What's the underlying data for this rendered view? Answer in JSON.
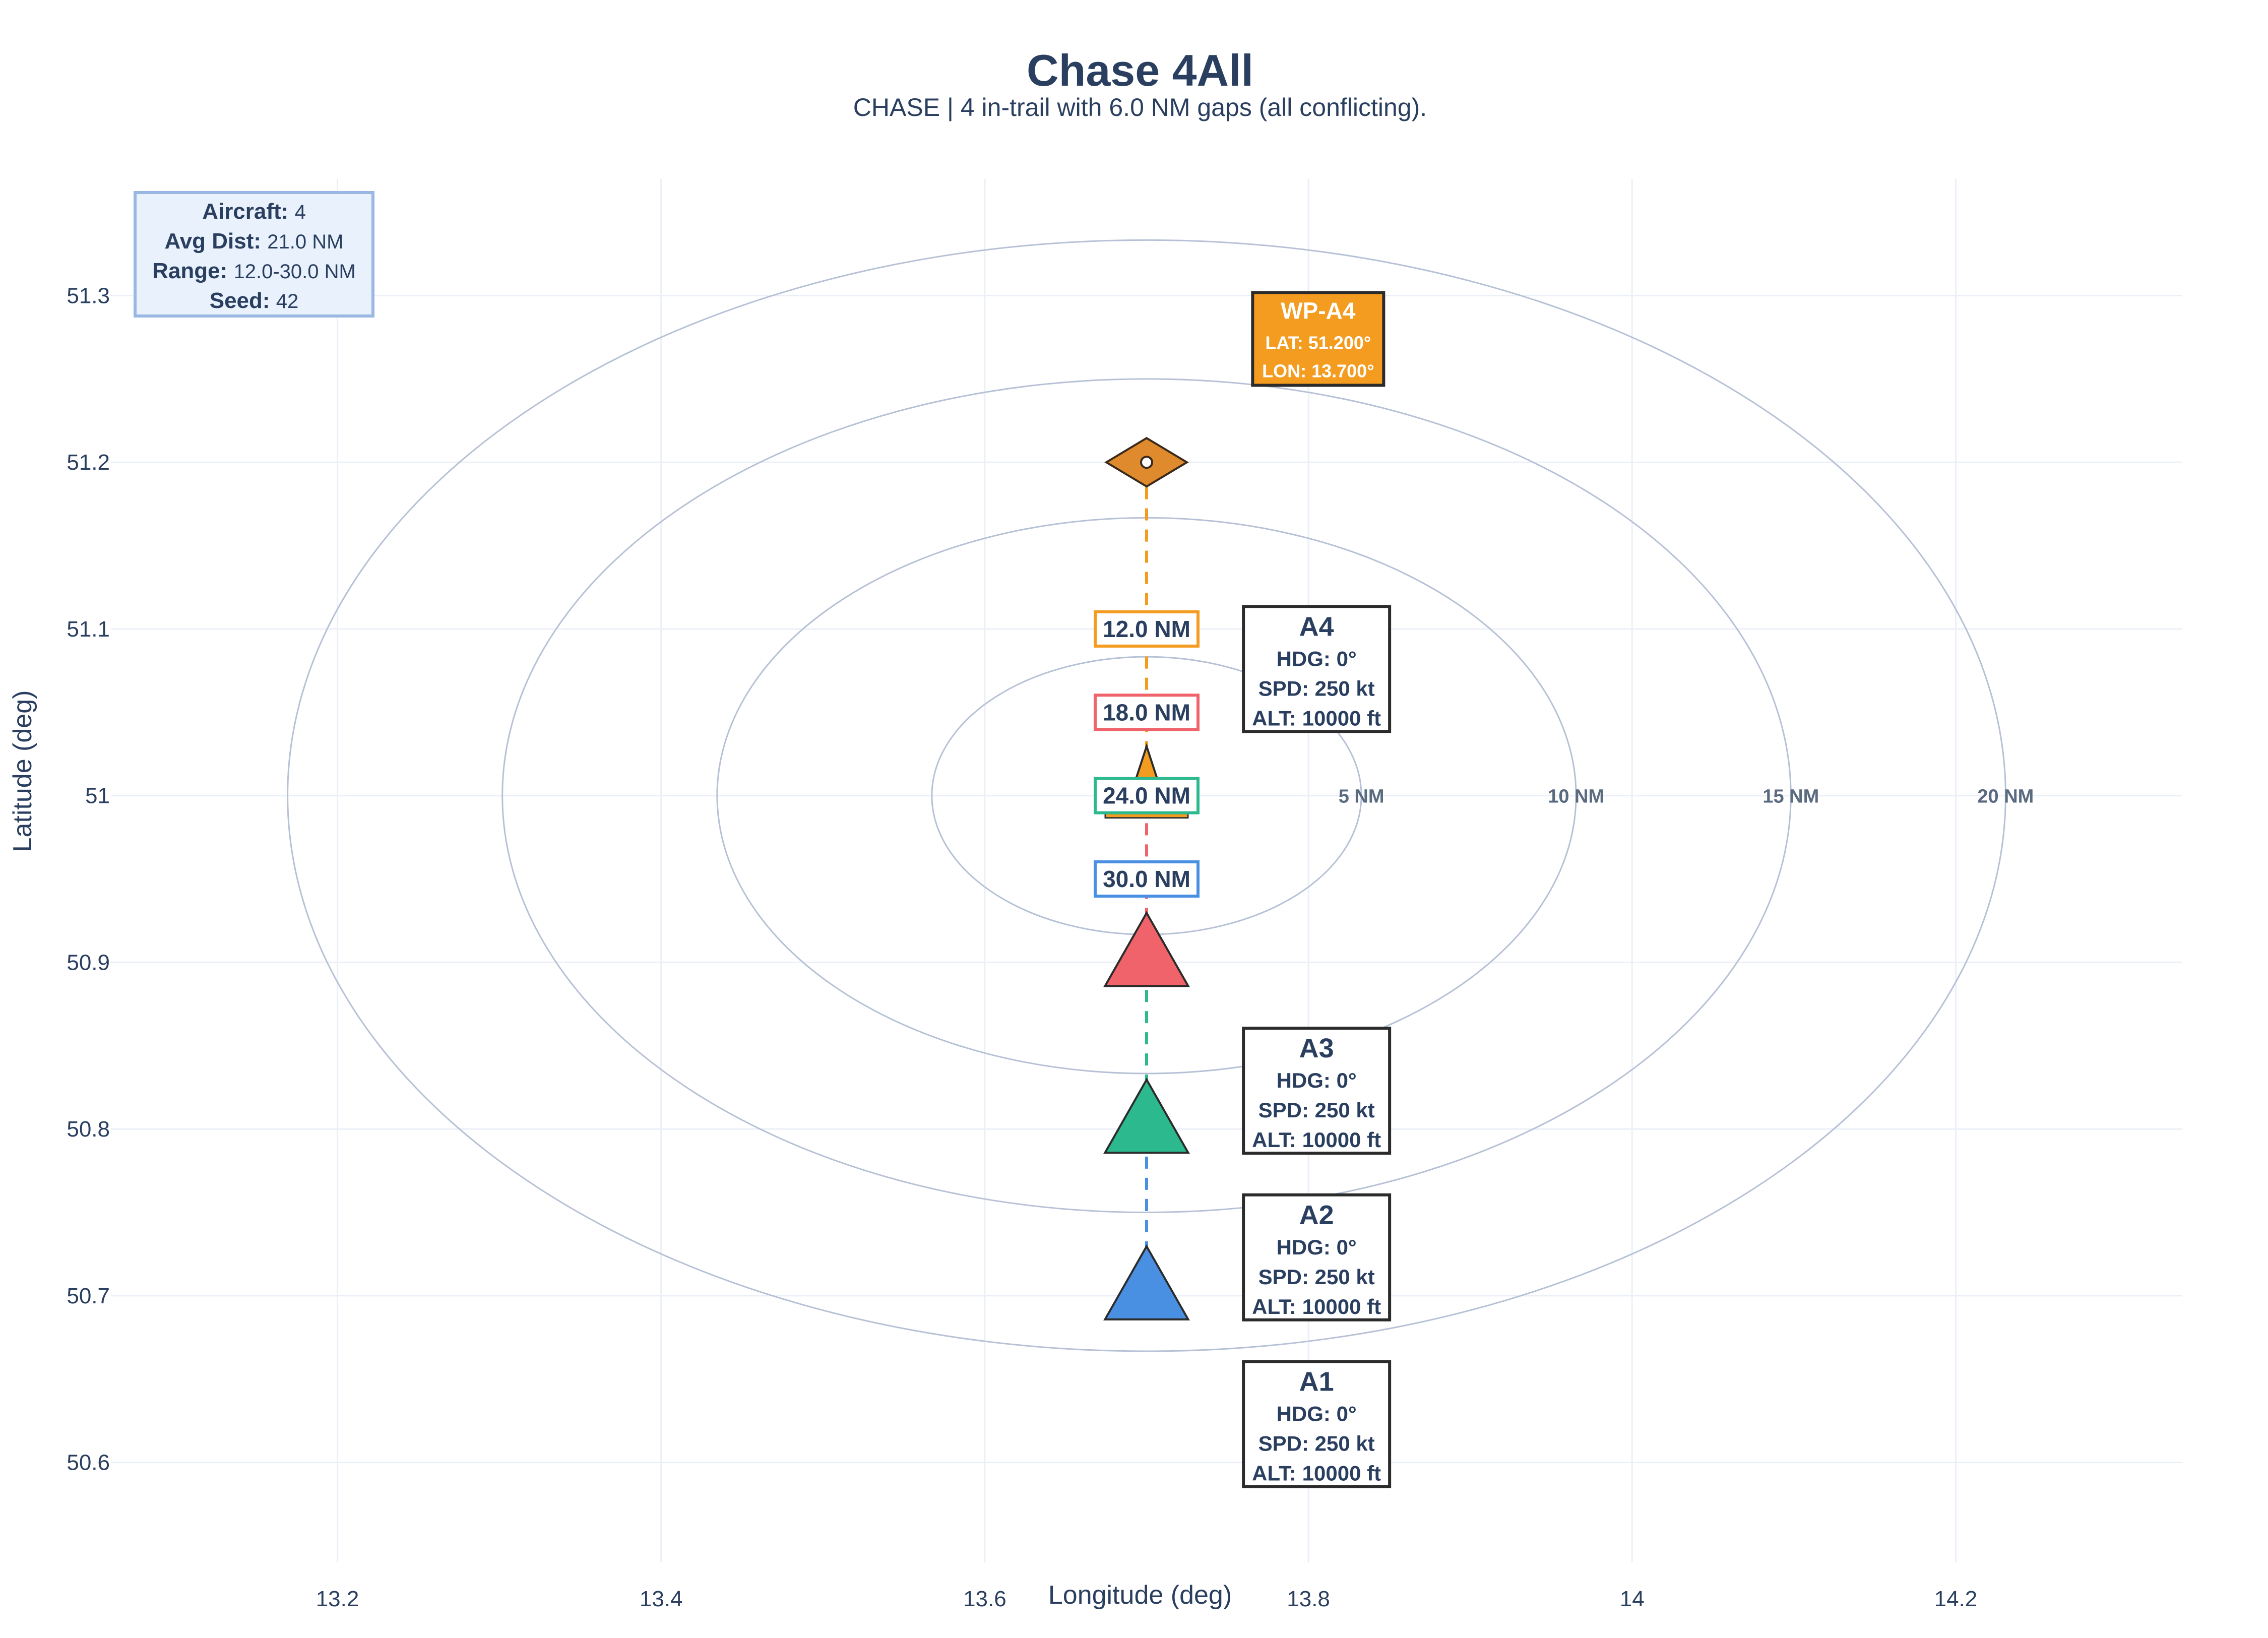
{
  "chart_data": {
    "type": "scatter",
    "title": "Chase 4All",
    "subtitle": "CHASE | 4 in-trail with 6.0 NM gaps (all conflicting).",
    "xlabel": "Longitude (deg)",
    "ylabel": "Latitude (deg)",
    "xlim": [
      13.06,
      14.34
    ],
    "ylim": [
      50.54,
      51.37
    ],
    "x_ticks": [
      13.2,
      13.4,
      13.6,
      13.8,
      14,
      14.2
    ],
    "x_tick_labels": [
      "13.2",
      "13.4",
      "13.6",
      "13.8",
      "14",
      "14.2"
    ],
    "y_ticks": [
      50.6,
      50.7,
      50.8,
      50.9,
      51.0,
      51.1,
      51.2,
      51.3
    ],
    "y_tick_labels": [
      "50.6",
      "50.7",
      "50.8",
      "50.9",
      "51",
      "51.1",
      "51.2",
      "51.3"
    ],
    "grid": true,
    "range_rings": {
      "center": [
        13.7,
        51.0
      ],
      "rings": [
        {
          "nm": 5,
          "label": "5 NM",
          "dlon": 0.1327,
          "dlat": 0.0833
        },
        {
          "nm": 10,
          "label": "10 NM",
          "dlon": 0.2654,
          "dlat": 0.1667
        },
        {
          "nm": 15,
          "label": "15 NM",
          "dlon": 0.3981,
          "dlat": 0.25
        },
        {
          "nm": 20,
          "label": "20 NM",
          "dlon": 0.5308,
          "dlat": 0.3333
        }
      ]
    },
    "aircraft": [
      {
        "id": "A1",
        "lon": 13.7,
        "lat": 50.7,
        "color": "#4a90e2",
        "size": "large",
        "hdg": "HDG: 0°",
        "spd": "SPD: 250 kt",
        "alt": "ALT: 10000 ft",
        "label_lon": 13.805,
        "label_lat": 50.623
      },
      {
        "id": "A2",
        "lon": 13.7,
        "lat": 50.8,
        "color": "#2cb98e",
        "size": "large",
        "hdg": "HDG: 0°",
        "spd": "SPD: 250 kt",
        "alt": "ALT: 10000 ft",
        "label_lon": 13.805,
        "label_lat": 50.723
      },
      {
        "id": "A3",
        "lon": 13.7,
        "lat": 50.9,
        "color": "#f0636b",
        "size": "large",
        "hdg": "HDG: 0°",
        "spd": "SPD: 250 kt",
        "alt": "ALT: 10000 ft",
        "label_lon": 13.805,
        "label_lat": 50.823
      },
      {
        "id": "A4",
        "lon": 13.7,
        "lat": 51.0,
        "color": "#f39c1f",
        "size": "small",
        "hdg": "HDG: 0°",
        "spd": "SPD: 250 kt",
        "alt": "ALT: 10000 ft",
        "label_lon": 13.805,
        "label_lat": 51.076
      }
    ],
    "waypoint": {
      "name": "WP-A4",
      "lon": 13.7,
      "lat": 51.2,
      "color": "#e08a2e",
      "lat_label": "LAT: 51.200°",
      "lon_label": "LON: 13.700°",
      "label_lon": 13.806,
      "label_lat": 51.274
    },
    "trail_segments": [
      {
        "from": [
          13.7,
          50.7
        ],
        "to": [
          13.7,
          50.8
        ],
        "color": "#4a90e2"
      },
      {
        "from": [
          13.7,
          50.8
        ],
        "to": [
          13.7,
          50.9
        ],
        "color": "#2cb98e"
      },
      {
        "from": [
          13.7,
          50.9
        ],
        "to": [
          13.7,
          51.0
        ],
        "color": "#f0636b"
      },
      {
        "from": [
          13.7,
          51.0
        ],
        "to": [
          13.7,
          51.2
        ],
        "color": "#f39c1f"
      }
    ],
    "distance_labels": [
      {
        "text": "12.0 NM",
        "lon": 13.7,
        "lat": 51.1,
        "color": "#f39c1f"
      },
      {
        "text": "18.0 NM",
        "lon": 13.7,
        "lat": 51.05,
        "color": "#f0636b"
      },
      {
        "text": "24.0 NM",
        "lon": 13.7,
        "lat": 51.0,
        "color": "#2cb98e"
      },
      {
        "text": "30.0 NM",
        "lon": 13.7,
        "lat": 50.95,
        "color": "#4a90e2"
      }
    ],
    "info_box": [
      {
        "key": "Aircraft:",
        "value": "4"
      },
      {
        "key": "Avg Dist:",
        "value": "21.0 NM"
      },
      {
        "key": "Range:",
        "value": "12.0-30.0 NM"
      },
      {
        "key": "Seed:",
        "value": "42"
      }
    ]
  }
}
